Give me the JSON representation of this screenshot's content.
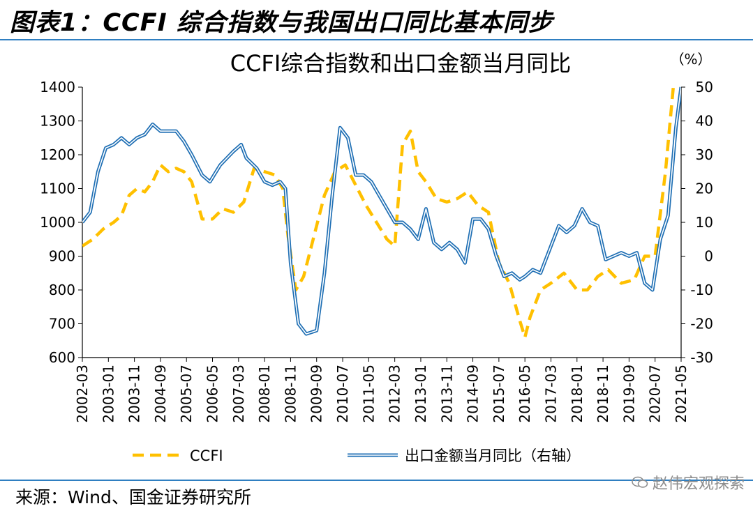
{
  "figure": {
    "caption": "图表1：CCFI 综合指数与我国出口同比基本同步",
    "source": "来源：Wind、国金证券研究所",
    "watermark": "赵伟宏观探索"
  },
  "chart_data": {
    "type": "line",
    "title": "CCFI综合指数和出口金额当月同比",
    "y2_unit_label": "（%）",
    "ylim": [
      600,
      1400
    ],
    "y_ticks": [
      "600",
      "700",
      "800",
      "900",
      "1000",
      "1100",
      "1200",
      "1300",
      "1400"
    ],
    "y2lim": [
      -30,
      50
    ],
    "y2_ticks": [
      "-30",
      "-20",
      "-10",
      "0",
      "10",
      "20",
      "30",
      "40",
      "50"
    ],
    "x_range": [
      "2002-03",
      "2021-05"
    ],
    "x_ticks": [
      "2002-03",
      "2003-01",
      "2003-11",
      "2004-09",
      "2005-07",
      "2006-05",
      "2007-03",
      "2008-01",
      "2008-11",
      "2009-09",
      "2010-07",
      "2011-05",
      "2012-03",
      "2013-01",
      "2013-11",
      "2014-09",
      "2015-07",
      "2016-05",
      "2017-03",
      "2018-01",
      "2018-11",
      "2019-09",
      "2020-07",
      "2021-05"
    ],
    "legend_position": "bottom",
    "series": [
      {
        "name": "CCFI",
        "axis": "left",
        "color": "#ffc000",
        "style": "dashed",
        "points": [
          [
            "2002-03",
            930
          ],
          [
            "2002-07",
            950
          ],
          [
            "2002-11",
            980
          ],
          [
            "2003-03",
            1000
          ],
          [
            "2003-06",
            1020
          ],
          [
            "2003-09",
            1080
          ],
          [
            "2003-12",
            1100
          ],
          [
            "2004-03",
            1090
          ],
          [
            "2004-06",
            1120
          ],
          [
            "2004-09",
            1170
          ],
          [
            "2004-12",
            1150
          ],
          [
            "2005-03",
            1160
          ],
          [
            "2005-06",
            1150
          ],
          [
            "2005-09",
            1120
          ],
          [
            "2006-01",
            1010
          ],
          [
            "2006-05",
            1010
          ],
          [
            "2006-09",
            1040
          ],
          [
            "2007-01",
            1030
          ],
          [
            "2007-05",
            1060
          ],
          [
            "2007-09",
            1160
          ],
          [
            "2008-01",
            1150
          ],
          [
            "2008-05",
            1140
          ],
          [
            "2008-08",
            1100
          ],
          [
            "2008-10",
            960
          ],
          [
            "2009-01",
            800
          ],
          [
            "2009-04",
            840
          ],
          [
            "2009-08",
            960
          ],
          [
            "2009-12",
            1080
          ],
          [
            "2010-04",
            1150
          ],
          [
            "2010-08",
            1170
          ],
          [
            "2010-12",
            1110
          ],
          [
            "2011-04",
            1050
          ],
          [
            "2011-08",
            1000
          ],
          [
            "2011-12",
            950
          ],
          [
            "2012-03",
            930
          ],
          [
            "2012-06",
            1230
          ],
          [
            "2012-09",
            1270
          ],
          [
            "2012-12",
            1150
          ],
          [
            "2013-03",
            1120
          ],
          [
            "2013-07",
            1070
          ],
          [
            "2013-11",
            1060
          ],
          [
            "2014-03",
            1070
          ],
          [
            "2014-07",
            1090
          ],
          [
            "2014-11",
            1050
          ],
          [
            "2015-03",
            1030
          ],
          [
            "2015-07",
            880
          ],
          [
            "2015-11",
            820
          ],
          [
            "2016-03",
            710
          ],
          [
            "2016-05",
            660
          ],
          [
            "2016-07",
            720
          ],
          [
            "2016-11",
            800
          ],
          [
            "2017-03",
            820
          ],
          [
            "2017-08",
            850
          ],
          [
            "2018-01",
            800
          ],
          [
            "2018-05",
            800
          ],
          [
            "2018-09",
            840
          ],
          [
            "2019-01",
            860
          ],
          [
            "2019-06",
            820
          ],
          [
            "2019-11",
            830
          ],
          [
            "2020-03",
            900
          ],
          [
            "2020-07",
            900
          ],
          [
            "2020-11",
            1150
          ],
          [
            "2021-02",
            1400
          ]
        ]
      },
      {
        "name": "出口金额当月同比（右轴）",
        "axis": "right",
        "color": "#1f6fb4",
        "style": "double",
        "points": [
          [
            "2002-03",
            10
          ],
          [
            "2002-06",
            13
          ],
          [
            "2002-09",
            25
          ],
          [
            "2002-12",
            32
          ],
          [
            "2003-03",
            33
          ],
          [
            "2003-06",
            35
          ],
          [
            "2003-09",
            33
          ],
          [
            "2003-12",
            35
          ],
          [
            "2004-03",
            36
          ],
          [
            "2004-06",
            39
          ],
          [
            "2004-09",
            37
          ],
          [
            "2004-12",
            37
          ],
          [
            "2005-03",
            37
          ],
          [
            "2005-06",
            34
          ],
          [
            "2005-09",
            30
          ],
          [
            "2006-01",
            24
          ],
          [
            "2006-04",
            22
          ],
          [
            "2006-08",
            27
          ],
          [
            "2007-01",
            31
          ],
          [
            "2007-04",
            33
          ],
          [
            "2007-06",
            29
          ],
          [
            "2007-10",
            26
          ],
          [
            "2008-01",
            22
          ],
          [
            "2008-04",
            21
          ],
          [
            "2008-07",
            22
          ],
          [
            "2008-09",
            20
          ],
          [
            "2008-11",
            -2
          ],
          [
            "2009-02",
            -20
          ],
          [
            "2009-05",
            -23
          ],
          [
            "2009-09",
            -22
          ],
          [
            "2009-12",
            -5
          ],
          [
            "2010-03",
            18
          ],
          [
            "2010-06",
            38
          ],
          [
            "2010-09",
            35
          ],
          [
            "2010-12",
            24
          ],
          [
            "2011-03",
            24
          ],
          [
            "2011-06",
            22
          ],
          [
            "2011-09",
            18
          ],
          [
            "2011-12",
            14
          ],
          [
            "2012-03",
            10
          ],
          [
            "2012-06",
            10
          ],
          [
            "2012-09",
            8
          ],
          [
            "2012-12",
            5
          ],
          [
            "2013-03",
            14
          ],
          [
            "2013-06",
            4
          ],
          [
            "2013-09",
            2
          ],
          [
            "2013-12",
            4
          ],
          [
            "2014-03",
            2
          ],
          [
            "2014-06",
            -2
          ],
          [
            "2014-09",
            11
          ],
          [
            "2014-12",
            11
          ],
          [
            "2015-03",
            8
          ],
          [
            "2015-06",
            0
          ],
          [
            "2015-09",
            -6
          ],
          [
            "2015-12",
            -5
          ],
          [
            "2016-03",
            -7
          ],
          [
            "2016-05",
            -6
          ],
          [
            "2016-08",
            -4
          ],
          [
            "2016-11",
            -5
          ],
          [
            "2017-03",
            3
          ],
          [
            "2017-06",
            9
          ],
          [
            "2017-09",
            7
          ],
          [
            "2017-12",
            9
          ],
          [
            "2018-03",
            14
          ],
          [
            "2018-06",
            10
          ],
          [
            "2018-09",
            9
          ],
          [
            "2018-12",
            -1
          ],
          [
            "2019-03",
            0
          ],
          [
            "2019-06",
            1
          ],
          [
            "2019-09",
            0
          ],
          [
            "2019-12",
            1
          ],
          [
            "2020-03",
            -8
          ],
          [
            "2020-06",
            -10
          ],
          [
            "2020-09",
            5
          ],
          [
            "2020-12",
            12
          ],
          [
            "2021-03",
            38
          ],
          [
            "2021-05",
            52
          ]
        ]
      }
    ]
  }
}
